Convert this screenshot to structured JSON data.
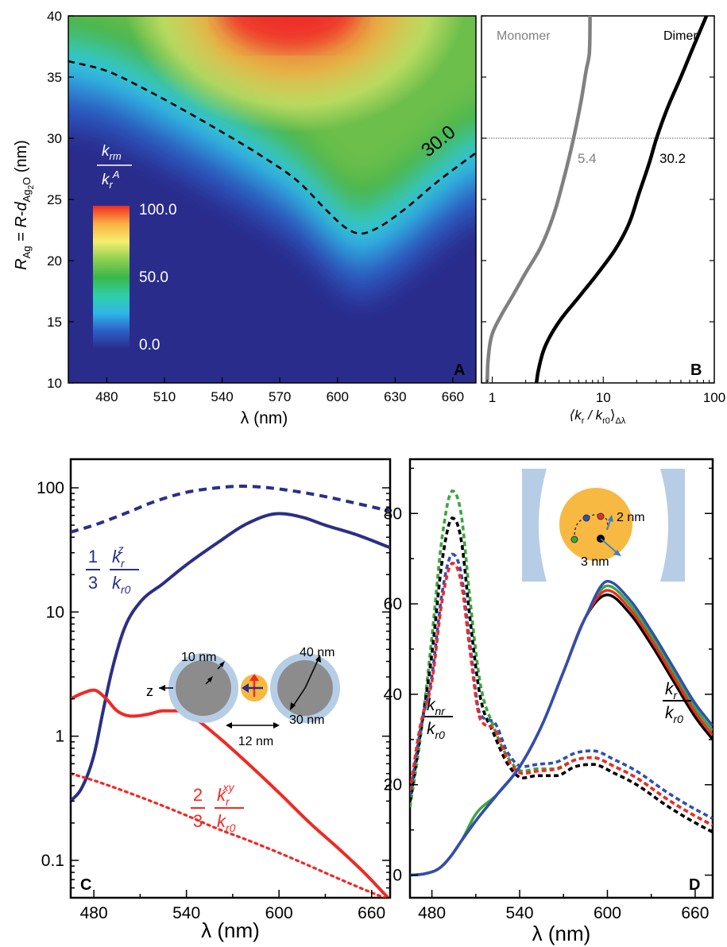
{
  "colors": {
    "navy": "#2b2f86",
    "red": "#ee2b25",
    "green": "#3aa83a",
    "blue": "#2f4fb3",
    "black": "#000000",
    "gray": "#808080",
    "shell": "#b6cde6",
    "core": "#8c8c8c",
    "gold": "#f7b941",
    "lens": "#b7cde6"
  },
  "chart_data": [
    {
      "panel": "A",
      "type": "heatmap",
      "xlabel": "λ (nm)",
      "ylabel_parts": [
        "R",
        "Ag",
        " = R-d",
        "Ag",
        "2",
        "O",
        " (nm)"
      ],
      "xlim": [
        460,
        672
      ],
      "ylim": [
        10,
        40
      ],
      "xticks": [
        480,
        510,
        540,
        570,
        600,
        630,
        660
      ],
      "yticks": [
        10,
        15,
        20,
        25,
        30,
        35,
        40
      ],
      "colorbar": {
        "label_parts": [
          "k",
          "rm",
          "k",
          "r",
          "A"
        ],
        "ticks": [
          "100.0",
          "50.0",
          "0.0"
        ],
        "stops": [
          "#2a2c8c",
          "#2d5fc6",
          "#2fb7e8",
          "#2fcfa5",
          "#39b74a",
          "#8fd050",
          "#f4ef6e",
          "#fbaf43",
          "#ee2b25"
        ]
      },
      "contour": {
        "label": "30.0",
        "points": [
          [
            460,
            36.3
          ],
          [
            480,
            35.5
          ],
          [
            500,
            34.0
          ],
          [
            520,
            32.3
          ],
          [
            540,
            30.5
          ],
          [
            560,
            28.6
          ],
          [
            580,
            26.4
          ],
          [
            595,
            24.0
          ],
          [
            605,
            22.6
          ],
          [
            612,
            22.2
          ],
          [
            620,
            22.6
          ],
          [
            635,
            24.2
          ],
          [
            650,
            26.2
          ],
          [
            665,
            28.0
          ],
          [
            672,
            28.8
          ]
        ]
      },
      "panel_label": "A"
    },
    {
      "panel": "B",
      "type": "line",
      "xlabel_parts": [
        "⟨k",
        "r",
        " / k",
        "r0",
        "⟩",
        "Δλ"
      ],
      "xscale": "log",
      "xlim": [
        0.8,
        100
      ],
      "ylim": [
        10,
        40
      ],
      "xtick_labels": [
        {
          "v": 1,
          "t": "1"
        },
        {
          "v": 10,
          "t": "10"
        },
        {
          "v": 100,
          "t": "100"
        }
      ],
      "yticks": [
        10,
        15,
        20,
        25,
        30,
        35,
        40
      ],
      "reference_line_y": 30,
      "series": [
        {
          "name": "Monomer",
          "color_key": "gray",
          "points": [
            [
              0.9,
              10.0
            ],
            [
              0.92,
              12.0
            ],
            [
              1.0,
              14.0
            ],
            [
              1.2,
              15.5
            ],
            [
              1.5,
              17.0
            ],
            [
              2.0,
              19.0
            ],
            [
              2.7,
              21.0
            ],
            [
              3.5,
              23.5
            ],
            [
              4.5,
              27.0
            ],
            [
              5.4,
              30.0
            ],
            [
              6.3,
              33.0
            ],
            [
              7.0,
              35.5
            ],
            [
              7.5,
              37.0
            ],
            [
              7.6,
              40.0
            ]
          ],
          "annotation": "5.4"
        },
        {
          "name": "Dimer",
          "color_key": "black",
          "points": [
            [
              2.5,
              10.0
            ],
            [
              2.6,
              11.0
            ],
            [
              3.0,
              13.0
            ],
            [
              4.0,
              15.0
            ],
            [
              6.0,
              17.0
            ],
            [
              9.0,
              19.0
            ],
            [
              13.0,
              21.0
            ],
            [
              17.0,
              23.0
            ],
            [
              21.0,
              25.5
            ],
            [
              26.0,
              28.0
            ],
            [
              30.2,
              30.0
            ],
            [
              38.0,
              32.5
            ],
            [
              50.0,
              35.0
            ],
            [
              65.0,
              37.5
            ],
            [
              85.0,
              40.0
            ]
          ],
          "annotation": "30.2"
        }
      ],
      "panel_label": "B"
    },
    {
      "panel": "C",
      "type": "line",
      "xlabel": "λ (nm)",
      "yscale": "log",
      "xlim": [
        465,
        672
      ],
      "ylim": [
        0.05,
        170
      ],
      "xticks": [
        480,
        540,
        600,
        660
      ],
      "ytick_labels": [
        {
          "v": 0.1,
          "t": "0.1"
        },
        {
          "v": 1,
          "t": "1"
        },
        {
          "v": 10,
          "t": "10"
        },
        {
          "v": 100,
          "t": "100"
        }
      ],
      "series": [
        {
          "color_key": "navy",
          "dash": "dashed",
          "points": [
            [
              465,
              44
            ],
            [
              480,
              50
            ],
            [
              500,
              62
            ],
            [
              520,
              78
            ],
            [
              540,
              92
            ],
            [
              560,
              100
            ],
            [
              575,
              103
            ],
            [
              590,
              101
            ],
            [
              610,
              94
            ],
            [
              630,
              85
            ],
            [
              650,
              75
            ],
            [
              672,
              65
            ]
          ]
        },
        {
          "color_key": "navy",
          "dash": "solid",
          "points": [
            [
              465,
              0.3
            ],
            [
              472,
              0.38
            ],
            [
              480,
              0.7
            ],
            [
              486,
              1.6
            ],
            [
              492,
              3.5
            ],
            [
              500,
              7.5
            ],
            [
              510,
              12
            ],
            [
              525,
              17
            ],
            [
              540,
              24
            ],
            [
              560,
              36
            ],
            [
              580,
              52
            ],
            [
              600,
              62
            ],
            [
              615,
              58
            ],
            [
              630,
              50
            ],
            [
              650,
              42
            ],
            [
              672,
              33
            ]
          ]
        },
        {
          "color_key": "red",
          "dash": "solid",
          "points": [
            [
              465,
              2.0
            ],
            [
              472,
              2.2
            ],
            [
              480,
              2.35
            ],
            [
              488,
              2.0
            ],
            [
              495,
              1.6
            ],
            [
              505,
              1.45
            ],
            [
              515,
              1.5
            ],
            [
              525,
              1.6
            ],
            [
              535,
              1.6
            ],
            [
              545,
              1.4
            ],
            [
              560,
              1.0
            ],
            [
              580,
              0.6
            ],
            [
              600,
              0.35
            ],
            [
              620,
              0.2
            ],
            [
              640,
              0.12
            ],
            [
              655,
              0.08
            ],
            [
              672,
              0.048
            ]
          ]
        },
        {
          "color_key": "red",
          "dash": "dotted",
          "points": [
            [
              465,
              0.5
            ],
            [
              480,
              0.44
            ],
            [
              500,
              0.36
            ],
            [
              520,
              0.29
            ],
            [
              540,
              0.23
            ],
            [
              560,
              0.18
            ],
            [
              580,
              0.145
            ],
            [
              600,
              0.115
            ],
            [
              620,
              0.09
            ],
            [
              640,
              0.07
            ],
            [
              660,
              0.055
            ],
            [
              672,
              0.048
            ]
          ]
        }
      ],
      "formula_z": {
        "frac_num": "1",
        "frac_den": "3",
        "num": "k",
        "num_sub": "r",
        "num_sup": "z",
        "den": "k",
        "den_sub": "r0"
      },
      "formula_xy": {
        "frac_num": "2",
        "frac_den": "3",
        "num": "k",
        "num_sub": "r",
        "num_sup": "xy",
        "den": "k",
        "den_sub": "r0"
      },
      "inset": {
        "shell_label": "10 nm",
        "radius_label": "40 nm",
        "core_label": "30 nm",
        "gap_label": "12 nm",
        "axis_label": "z"
      },
      "panel_label": "C"
    },
    {
      "panel": "D",
      "type": "line",
      "xlabel": "λ (nm)",
      "xlim": [
        465,
        672
      ],
      "ylim": [
        -5,
        92
      ],
      "xticks": [
        480,
        540,
        600,
        660
      ],
      "yticks": [
        0,
        20,
        40,
        60,
        80
      ],
      "series_groups": [
        {
          "kind": "nonradiative",
          "dash": "dashed",
          "colors": [
            "green",
            "black",
            "blue",
            "red"
          ],
          "peaks": [
            85,
            79,
            71,
            69
          ],
          "dips": [
            23,
            21.5,
            24,
            22.5
          ],
          "humps": [
            26,
            24.5,
            27.5,
            26
          ]
        },
        {
          "kind": "radiative",
          "dash": "solid",
          "colors": [
            "green",
            "black",
            "red",
            "blue"
          ],
          "peaks": [
            64,
            62,
            63,
            65
          ]
        }
      ],
      "label_nr": {
        "num": "k",
        "num_sub": "nr",
        "den": "k",
        "den_sub": "r0"
      },
      "label_r": {
        "num": "k",
        "num_sub": "r",
        "den": "k",
        "den_sub": "r0"
      },
      "inset": {
        "label_a": "2 nm",
        "label_b": "3 nm"
      },
      "panel_label": "D"
    }
  ]
}
